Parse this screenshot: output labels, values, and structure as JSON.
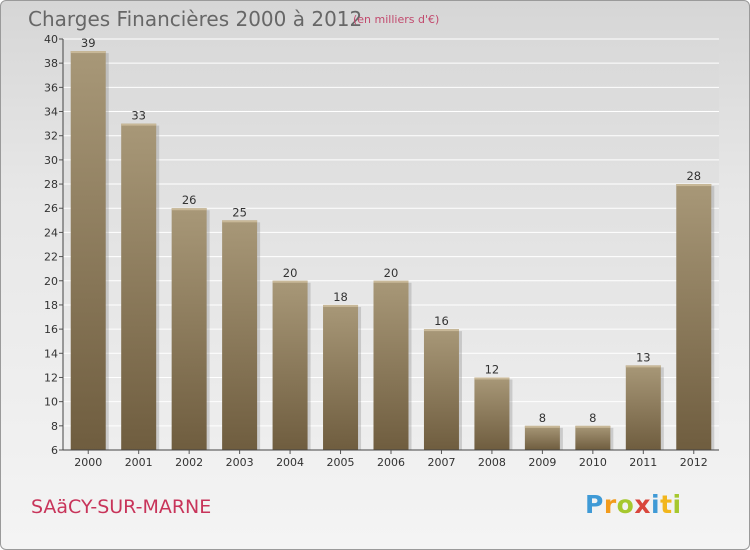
{
  "header": {
    "title": "Charges Financières 2000 à 2012",
    "unit": "(en milliers d'€)"
  },
  "footer": {
    "place": "SAäCY-SUR-MARNE",
    "logo": [
      "P",
      "r",
      "o",
      "x",
      "i",
      "t",
      "i"
    ]
  },
  "colors": {
    "bar_top": "#a89878",
    "bar_bottom": "#6f5d3f",
    "title": "#676767",
    "place": "#c8345a",
    "unit": "#c24a6e"
  },
  "chart_data": {
    "type": "bar",
    "title": "Charges Financières 2000 à 2012",
    "subtitle": "(en milliers d'€)",
    "categories": [
      "2000",
      "2001",
      "2002",
      "2003",
      "2004",
      "2005",
      "2006",
      "2007",
      "2008",
      "2009",
      "2010",
      "2011",
      "2012"
    ],
    "values": [
      39,
      33,
      26,
      25,
      20,
      18,
      20,
      16,
      12,
      8,
      8,
      13,
      28
    ],
    "ylim": [
      6,
      40
    ],
    "yticks": [
      6,
      8,
      10,
      12,
      14,
      16,
      18,
      20,
      22,
      24,
      26,
      28,
      30,
      32,
      34,
      36,
      38,
      40
    ],
    "grid": true,
    "legend": "none"
  }
}
